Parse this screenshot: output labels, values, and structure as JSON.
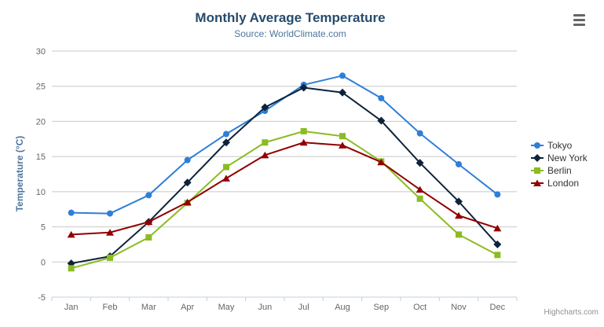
{
  "chart_data": {
    "type": "line",
    "title": "Monthly Average Temperature",
    "subtitle": "Source: WorldClimate.com",
    "xlabel": "",
    "ylabel": "Temperature (°C)",
    "ylim": [
      -5,
      30
    ],
    "yticks": [
      -5,
      0,
      5,
      10,
      15,
      20,
      25,
      30
    ],
    "grid": true,
    "legend_position": "right",
    "categories": [
      "Jan",
      "Feb",
      "Mar",
      "Apr",
      "May",
      "Jun",
      "Jul",
      "Aug",
      "Sep",
      "Oct",
      "Nov",
      "Dec"
    ],
    "series": [
      {
        "name": "Tokyo",
        "color": "#2f7ed8",
        "marker": "circle",
        "values": [
          7.0,
          6.9,
          9.5,
          14.5,
          18.2,
          21.5,
          25.2,
          26.5,
          23.3,
          18.3,
          13.9,
          9.6
        ]
      },
      {
        "name": "New York",
        "color": "#0d233a",
        "marker": "diamond",
        "values": [
          -0.2,
          0.8,
          5.7,
          11.3,
          17.0,
          22.0,
          24.8,
          24.1,
          20.1,
          14.1,
          8.6,
          2.5
        ]
      },
      {
        "name": "Berlin",
        "color": "#8bbc21",
        "marker": "square",
        "values": [
          -0.9,
          0.6,
          3.5,
          8.4,
          13.5,
          17.0,
          18.6,
          17.9,
          14.3,
          9.0,
          3.9,
          1.0
        ]
      },
      {
        "name": "London",
        "color": "#910000",
        "marker": "triangle",
        "values": [
          3.9,
          4.2,
          5.7,
          8.5,
          11.9,
          15.2,
          17.0,
          16.6,
          14.2,
          10.3,
          6.6,
          4.8
        ]
      }
    ]
  },
  "credits": {
    "label": "Highcharts.com"
  },
  "colors": {
    "title": "#274b6d",
    "subtitle": "#4d759e",
    "axis_title": "#4d759e",
    "tick_label": "#666666",
    "legend_text": "#333333",
    "gridline": "#c8c8c8",
    "axis_line": "#c0d0e0",
    "export_icon": "#666666",
    "credits": "#909090",
    "background": "#ffffff"
  }
}
